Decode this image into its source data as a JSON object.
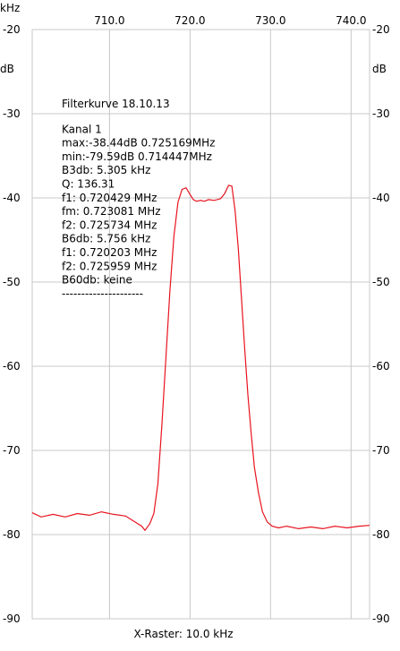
{
  "chart_data": {
    "type": "line",
    "x_unit": "kHz",
    "y_unit": "dB",
    "xlim": [
      700.4,
      742.3
    ],
    "ylim": [
      -90,
      -20
    ],
    "x_ticks": [
      710.0,
      720.0,
      730.0,
      740.0
    ],
    "x_tick_labels": [
      "710.0",
      "720.0",
      "730.0",
      "740.0"
    ],
    "y_ticks": [
      -20,
      -30,
      -40,
      -50,
      -60,
      -70,
      -80,
      -90
    ],
    "y_tick_labels": [
      "-20",
      "-30",
      "-40",
      "-50",
      "-60",
      "-70",
      "-80",
      "-90"
    ],
    "grid": true,
    "xlabel": "X-Raster: 10.0 kHz",
    "line_color": "#e8131f",
    "grid_color": "#c8c8c8",
    "annotations": [
      "Filterkurve 18.10.13",
      "",
      "Kanal 1",
      "max:-38.44dB 0.725169MHz",
      "min:-79.59dB 0.714447MHz",
      "B3db: 5.305 kHz",
      "Q: 136.31",
      "f1: 0.720429 MHz",
      "fm: 0.723081 MHz",
      "f2: 0.725734 MHz",
      "B6db: 5.756 kHz",
      "f1: 0.720203 MHz",
      "f2: 0.725959 MHz",
      "B60db: keine",
      "---------------------"
    ],
    "series": [
      {
        "x": [
          700.4,
          701.5,
          703.0,
          704.5,
          706.0,
          707.5,
          709.0,
          710.5,
          712.0,
          713.0,
          714.0,
          714.4,
          715.0,
          715.5,
          716.0,
          716.5,
          717.0,
          717.5,
          718.0,
          718.5,
          719.0,
          719.5,
          720.0,
          720.4,
          720.8,
          721.3,
          721.8,
          722.3,
          723.0,
          723.8,
          724.3,
          724.8,
          725.2,
          725.6,
          726.0,
          726.4,
          726.8,
          727.2,
          727.6,
          728.0,
          728.5,
          729.0,
          729.6,
          730.2,
          731.0,
          732.0,
          733.5,
          735.0,
          736.5,
          738.0,
          739.5,
          741.0,
          742.3
        ],
        "y": [
          -77.4,
          -77.9,
          -77.6,
          -77.9,
          -77.5,
          -77.7,
          -77.3,
          -77.6,
          -77.8,
          -78.4,
          -79.0,
          -79.5,
          -78.7,
          -77.5,
          -74.0,
          -67.0,
          -59.0,
          -51.0,
          -44.5,
          -40.5,
          -39.0,
          -38.8,
          -39.6,
          -40.2,
          -40.4,
          -40.3,
          -40.4,
          -40.2,
          -40.3,
          -40.1,
          -39.5,
          -38.5,
          -38.6,
          -41.5,
          -46.0,
          -52.0,
          -58.0,
          -63.5,
          -68.0,
          -72.0,
          -75.0,
          -77.3,
          -78.5,
          -79.0,
          -79.2,
          -79.0,
          -79.3,
          -79.1,
          -79.3,
          -79.0,
          -79.2,
          -79.0,
          -78.9
        ]
      }
    ]
  }
}
